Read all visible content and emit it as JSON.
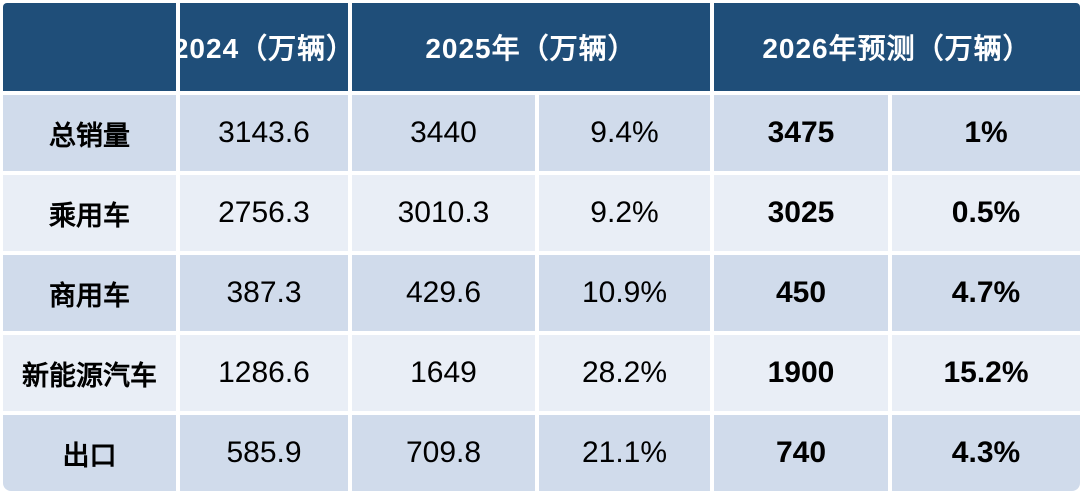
{
  "colors": {
    "header_bg": "#1F4E79",
    "header_text": "#FFFFFF",
    "row_odd": "#D0DBEB",
    "row_even": "#E9EEF6",
    "body_text": "#000000",
    "page_bg": "#FFFFFF"
  },
  "chart_data": {
    "type": "table",
    "title": "",
    "units": "万辆",
    "header": {
      "corner": "",
      "col_2024": "2024（万辆）",
      "col_2025": "2025年（万辆）",
      "col_2026": "2026年预测（万辆）"
    },
    "column_structure": [
      "row label",
      "2024 value",
      "2025 value",
      "2025 YoY %",
      "2026 forecast value",
      "2026 YoY %"
    ],
    "rows": [
      [
        "总销量",
        "3143.6",
        "3440",
        "9.4%",
        "3475",
        "1%"
      ],
      [
        "乘用车",
        "2756.3",
        "3010.3",
        "9.2%",
        "3025",
        "0.5%"
      ],
      [
        "商用车",
        "387.3",
        "429.6",
        "10.9%",
        "450",
        "4.7%"
      ],
      [
        "新能源汽车",
        "1286.6",
        "1649",
        "28.2%",
        "1900",
        "15.2%"
      ],
      [
        "出口",
        "585.9",
        "709.8",
        "21.1%",
        "740",
        "4.3%"
      ]
    ]
  }
}
